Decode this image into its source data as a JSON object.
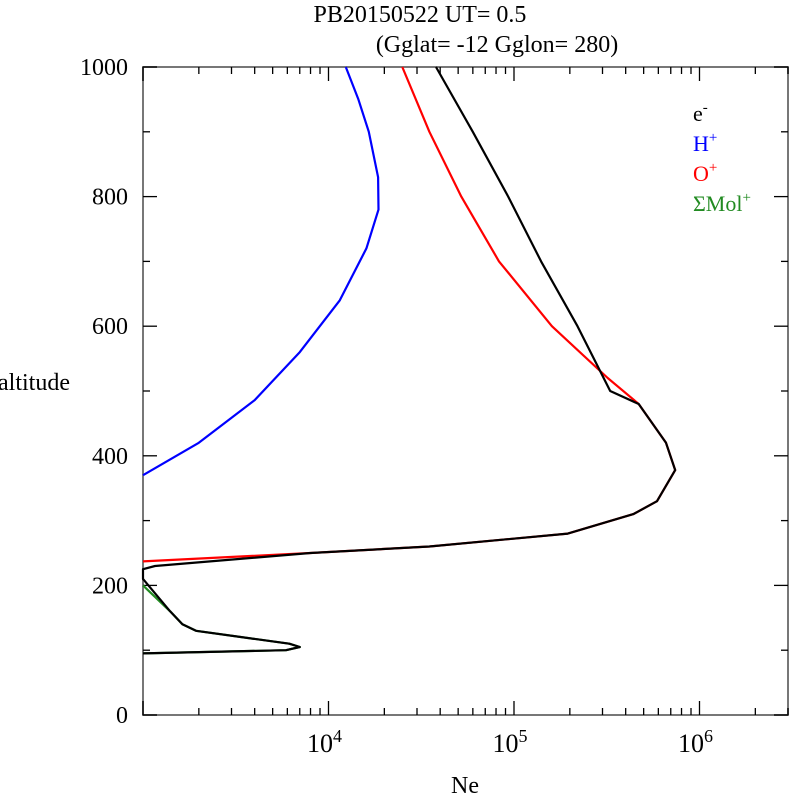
{
  "chart_data": {
    "type": "line",
    "title": "PB20150522   UT=  0.5",
    "subtitle": "(Gglat= -12   Gglon=  280)",
    "xlabel": "Ne",
    "ylabel": "altitude",
    "xscale": "log",
    "xlim": [
      1000,
      3000000
    ],
    "ylim": [
      0,
      1000
    ],
    "x_tick_labels": [
      {
        "base": "10",
        "exp": "4",
        "value": 10000
      },
      {
        "base": "10",
        "exp": "5",
        "value": 100000
      },
      {
        "base": "10",
        "exp": "6",
        "value": 1000000
      }
    ],
    "y_tick_labels": [
      "0",
      "200",
      "400",
      "600",
      "800",
      "1000"
    ],
    "legend_position": "top-right",
    "series": [
      {
        "name": "e-",
        "label": "e",
        "sup": "-",
        "color": "#000000",
        "points": [
          [
            1000,
            95
          ],
          [
            5900,
            100
          ],
          [
            7000,
            105
          ],
          [
            6150,
            110
          ],
          [
            1930,
            130
          ],
          [
            1630,
            140
          ],
          [
            1400,
            160
          ],
          [
            1000,
            210
          ],
          [
            1000,
            225
          ],
          [
            1160,
            230
          ],
          [
            8000,
            250
          ],
          [
            35000,
            260
          ],
          [
            195000,
            280
          ],
          [
            440000,
            310
          ],
          [
            590000,
            330
          ],
          [
            740000,
            378
          ],
          [
            660000,
            420
          ],
          [
            470000,
            480
          ],
          [
            330000,
            500
          ],
          [
            220000,
            600
          ],
          [
            140000,
            700
          ],
          [
            93000,
            800
          ],
          [
            60000,
            900
          ],
          [
            38000,
            1000
          ]
        ]
      },
      {
        "name": "H+",
        "label": "H",
        "sup": "+",
        "color": "#0000ff",
        "points": [
          [
            1000,
            370
          ],
          [
            2000,
            420
          ],
          [
            4000,
            486
          ],
          [
            7000,
            560
          ],
          [
            11500,
            640
          ],
          [
            16000,
            720
          ],
          [
            18600,
            780
          ],
          [
            18500,
            830
          ],
          [
            16500,
            900
          ],
          [
            14500,
            950
          ],
          [
            12400,
            1000
          ]
        ]
      },
      {
        "name": "O+",
        "label": "O",
        "sup": "+",
        "color": "#ff0000",
        "points": [
          [
            1000,
            237
          ],
          [
            8000,
            250
          ],
          [
            35000,
            260
          ],
          [
            195000,
            280
          ],
          [
            440000,
            310
          ],
          [
            590000,
            330
          ],
          [
            740000,
            378
          ],
          [
            660000,
            420
          ],
          [
            470000,
            480
          ],
          [
            320000,
            520
          ],
          [
            160000,
            600
          ],
          [
            83000,
            700
          ],
          [
            52000,
            800
          ],
          [
            35000,
            900
          ],
          [
            25000,
            1000
          ]
        ]
      },
      {
        "name": "ΣMol+",
        "label": "ΣMol",
        "sup": "+",
        "color": "#228b22",
        "points": [
          [
            1000,
            95
          ],
          [
            5900,
            100
          ],
          [
            7000,
            105
          ],
          [
            6150,
            110
          ],
          [
            1930,
            130
          ],
          [
            1630,
            140
          ],
          [
            1400,
            160
          ],
          [
            1000,
            200
          ]
        ]
      }
    ]
  }
}
